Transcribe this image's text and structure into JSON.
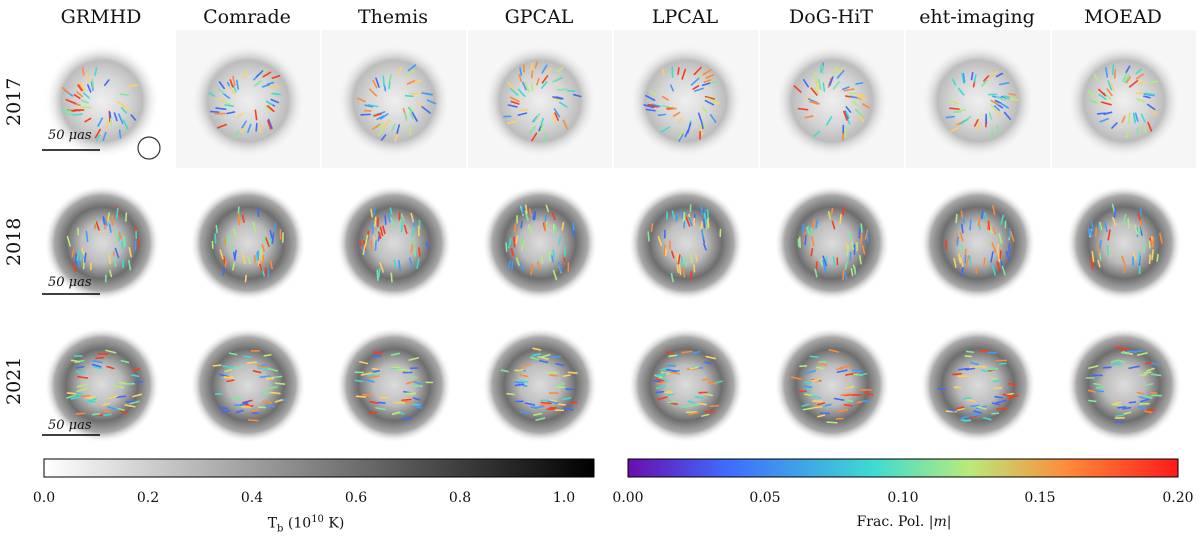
{
  "columns": [
    "GRMHD",
    "Comrade",
    "Themis",
    "GPCAL",
    "LPCAL",
    "DoG-HiT",
    "eht-imaging",
    "MOEAD"
  ],
  "rows": [
    "2017",
    "2018",
    "2021"
  ],
  "scale_bar": "50 μas",
  "colorbar_left": {
    "label": "T_b (10^10 K)",
    "ticks": [
      "0.0",
      "0.2",
      "0.4",
      "0.6",
      "0.8",
      "1.0"
    ],
    "colors": [
      "#ffffff",
      "#000000"
    ]
  },
  "colorbar_right": {
    "label": "Frac. Pol. |m|",
    "ticks": [
      "0.00",
      "0.05",
      "0.10",
      "0.15",
      "0.20"
    ],
    "colors": [
      "#6a0dad",
      "#3f6bff",
      "#3fdcd0",
      "#b9ea7a",
      "#ff8a3a",
      "#ff1a1a"
    ]
  }
}
